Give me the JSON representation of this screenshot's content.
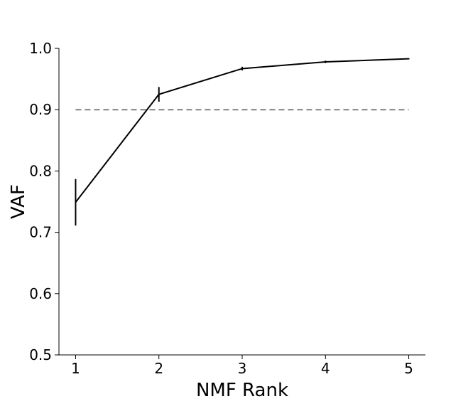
{
  "chart_data": {
    "type": "line",
    "xlabel": "NMF Rank",
    "ylabel": "VAF",
    "x": [
      1,
      2,
      3,
      4,
      5
    ],
    "x_ticks": [
      "1",
      "2",
      "3",
      "4",
      "5"
    ],
    "y_ticks": [
      "0.5",
      "0.6",
      "0.7",
      "0.8",
      "0.9",
      "1.0"
    ],
    "xlim": [
      0.8,
      5.2
    ],
    "ylim": [
      0.5,
      1.0
    ],
    "series": [
      {
        "values": [
          0.749,
          0.925,
          0.967,
          0.978,
          0.983
        ],
        "error": [
          0.038,
          0.012,
          0.003,
          0.002,
          0.001
        ],
        "color": "#000000"
      }
    ],
    "reference_line": {
      "y": 0.9,
      "x_range": [
        1,
        5
      ],
      "style": "dashed",
      "color": "#808080"
    },
    "grid": false,
    "legend": "none"
  }
}
